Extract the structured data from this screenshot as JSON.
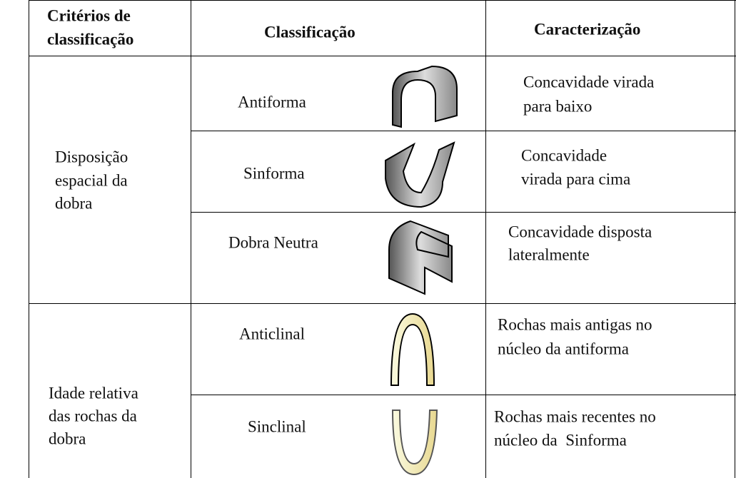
{
  "header": {
    "criterios": [
      "Critérios de",
      "classificação"
    ],
    "classificacao": "Classificação",
    "caracterizacao": "Caracterização"
  },
  "groups": [
    {
      "criterio": [
        "Disposição",
        "espacial da",
        "dobra"
      ],
      "rows": [
        {
          "classificacao": "Antiforma",
          "caracterizacao": [
            "Concavidade virada",
            "para baixo"
          ]
        },
        {
          "classificacao": "Sinforma",
          "caracterizacao": [
            "Concavidade",
            "virada para cima"
          ]
        },
        {
          "classificacao": "Dobra Neutra",
          "caracterizacao": [
            "Concavidade disposta",
            "lateralmente"
          ]
        }
      ]
    },
    {
      "criterio": [
        "Idade relativa",
        "das rochas da",
        "dobra"
      ],
      "rows": [
        {
          "classificacao": "Anticlinal",
          "caracterizacao": [
            "Rochas mais antigas no",
            "núcleo da antiforma"
          ]
        },
        {
          "classificacao": "Sinclinal",
          "caracterizacao": [
            "Rochas mais recentes no",
            "núcleo da  Sinforma"
          ]
        }
      ]
    }
  ]
}
